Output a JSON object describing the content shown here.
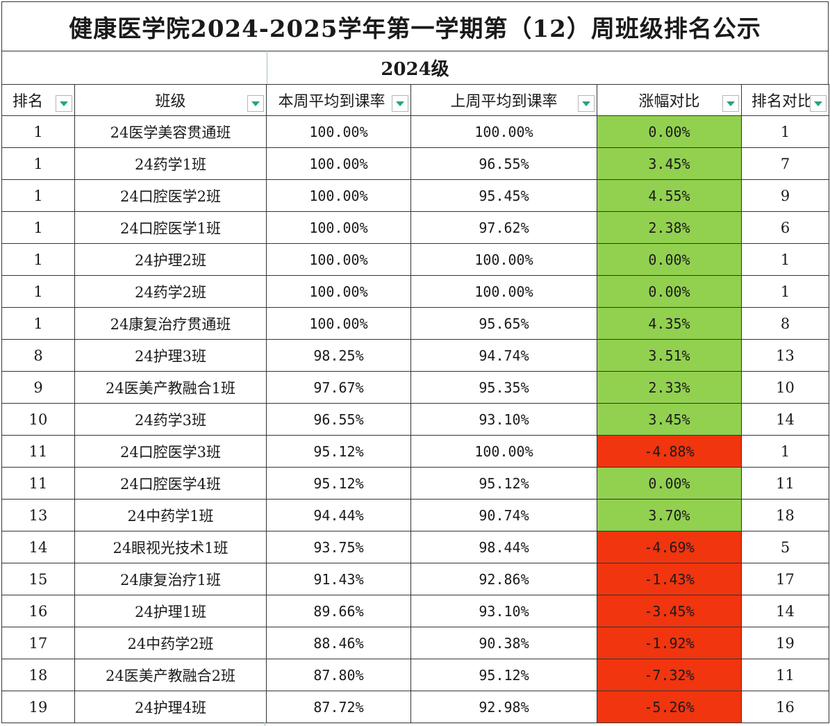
{
  "title": "健康医学院2024-2025学年第一学期第（12）周班级排名公示",
  "subtitle": "2024级",
  "headers": {
    "rank": "排名",
    "class": "班级",
    "this_week": "本周平均到课率",
    "last_week": "上周平均到课率",
    "change": "涨幅对比",
    "rank_compare": "排名对比"
  },
  "colors": {
    "increase_or_same": "#92d050",
    "decrease": "#f0350f",
    "filter_arrow": "#22a870"
  },
  "rows": [
    {
      "rank": "1",
      "class": "24医学美容贯通班",
      "this_week": "100.00%",
      "last_week": "100.00%",
      "change": "0.00%",
      "rank_compare": "1",
      "trend": "pos"
    },
    {
      "rank": "1",
      "class": "24药学1班",
      "this_week": "100.00%",
      "last_week": "96.55%",
      "change": "3.45%",
      "rank_compare": "7",
      "trend": "pos"
    },
    {
      "rank": "1",
      "class": "24口腔医学2班",
      "this_week": "100.00%",
      "last_week": "95.45%",
      "change": "4.55%",
      "rank_compare": "9",
      "trend": "pos"
    },
    {
      "rank": "1",
      "class": "24口腔医学1班",
      "this_week": "100.00%",
      "last_week": "97.62%",
      "change": "2.38%",
      "rank_compare": "6",
      "trend": "pos"
    },
    {
      "rank": "1",
      "class": "24护理2班",
      "this_week": "100.00%",
      "last_week": "100.00%",
      "change": "0.00%",
      "rank_compare": "1",
      "trend": "pos"
    },
    {
      "rank": "1",
      "class": "24药学2班",
      "this_week": "100.00%",
      "last_week": "100.00%",
      "change": "0.00%",
      "rank_compare": "1",
      "trend": "pos"
    },
    {
      "rank": "1",
      "class": "24康复治疗贯通班",
      "this_week": "100.00%",
      "last_week": "95.65%",
      "change": "4.35%",
      "rank_compare": "8",
      "trend": "pos"
    },
    {
      "rank": "8",
      "class": "24护理3班",
      "this_week": "98.25%",
      "last_week": "94.74%",
      "change": "3.51%",
      "rank_compare": "13",
      "trend": "pos"
    },
    {
      "rank": "9",
      "class": "24医美产教融合1班",
      "this_week": "97.67%",
      "last_week": "95.35%",
      "change": "2.33%",
      "rank_compare": "10",
      "trend": "pos"
    },
    {
      "rank": "10",
      "class": "24药学3班",
      "this_week": "96.55%",
      "last_week": "93.10%",
      "change": "3.45%",
      "rank_compare": "14",
      "trend": "pos"
    },
    {
      "rank": "11",
      "class": "24口腔医学3班",
      "this_week": "95.12%",
      "last_week": "100.00%",
      "change": "-4.88%",
      "rank_compare": "1",
      "trend": "neg"
    },
    {
      "rank": "11",
      "class": "24口腔医学4班",
      "this_week": "95.12%",
      "last_week": "95.12%",
      "change": "0.00%",
      "rank_compare": "11",
      "trend": "pos"
    },
    {
      "rank": "13",
      "class": "24中药学1班",
      "this_week": "94.44%",
      "last_week": "90.74%",
      "change": "3.70%",
      "rank_compare": "18",
      "trend": "pos"
    },
    {
      "rank": "14",
      "class": "24眼视光技术1班",
      "this_week": "93.75%",
      "last_week": "98.44%",
      "change": "-4.69%",
      "rank_compare": "5",
      "trend": "neg"
    },
    {
      "rank": "15",
      "class": "24康复治疗1班",
      "this_week": "91.43%",
      "last_week": "92.86%",
      "change": "-1.43%",
      "rank_compare": "17",
      "trend": "neg"
    },
    {
      "rank": "16",
      "class": "24护理1班",
      "this_week": "89.66%",
      "last_week": "93.10%",
      "change": "-3.45%",
      "rank_compare": "14",
      "trend": "neg"
    },
    {
      "rank": "17",
      "class": "24中药学2班",
      "this_week": "88.46%",
      "last_week": "90.38%",
      "change": "-1.92%",
      "rank_compare": "19",
      "trend": "neg"
    },
    {
      "rank": "18",
      "class": "24医美产教融合2班",
      "this_week": "87.80%",
      "last_week": "95.12%",
      "change": "-7.32%",
      "rank_compare": "11",
      "trend": "neg"
    },
    {
      "rank": "19",
      "class": "24护理4班",
      "this_week": "87.72%",
      "last_week": "92.98%",
      "change": "-5.26%",
      "rank_compare": "16",
      "trend": "neg"
    }
  ]
}
